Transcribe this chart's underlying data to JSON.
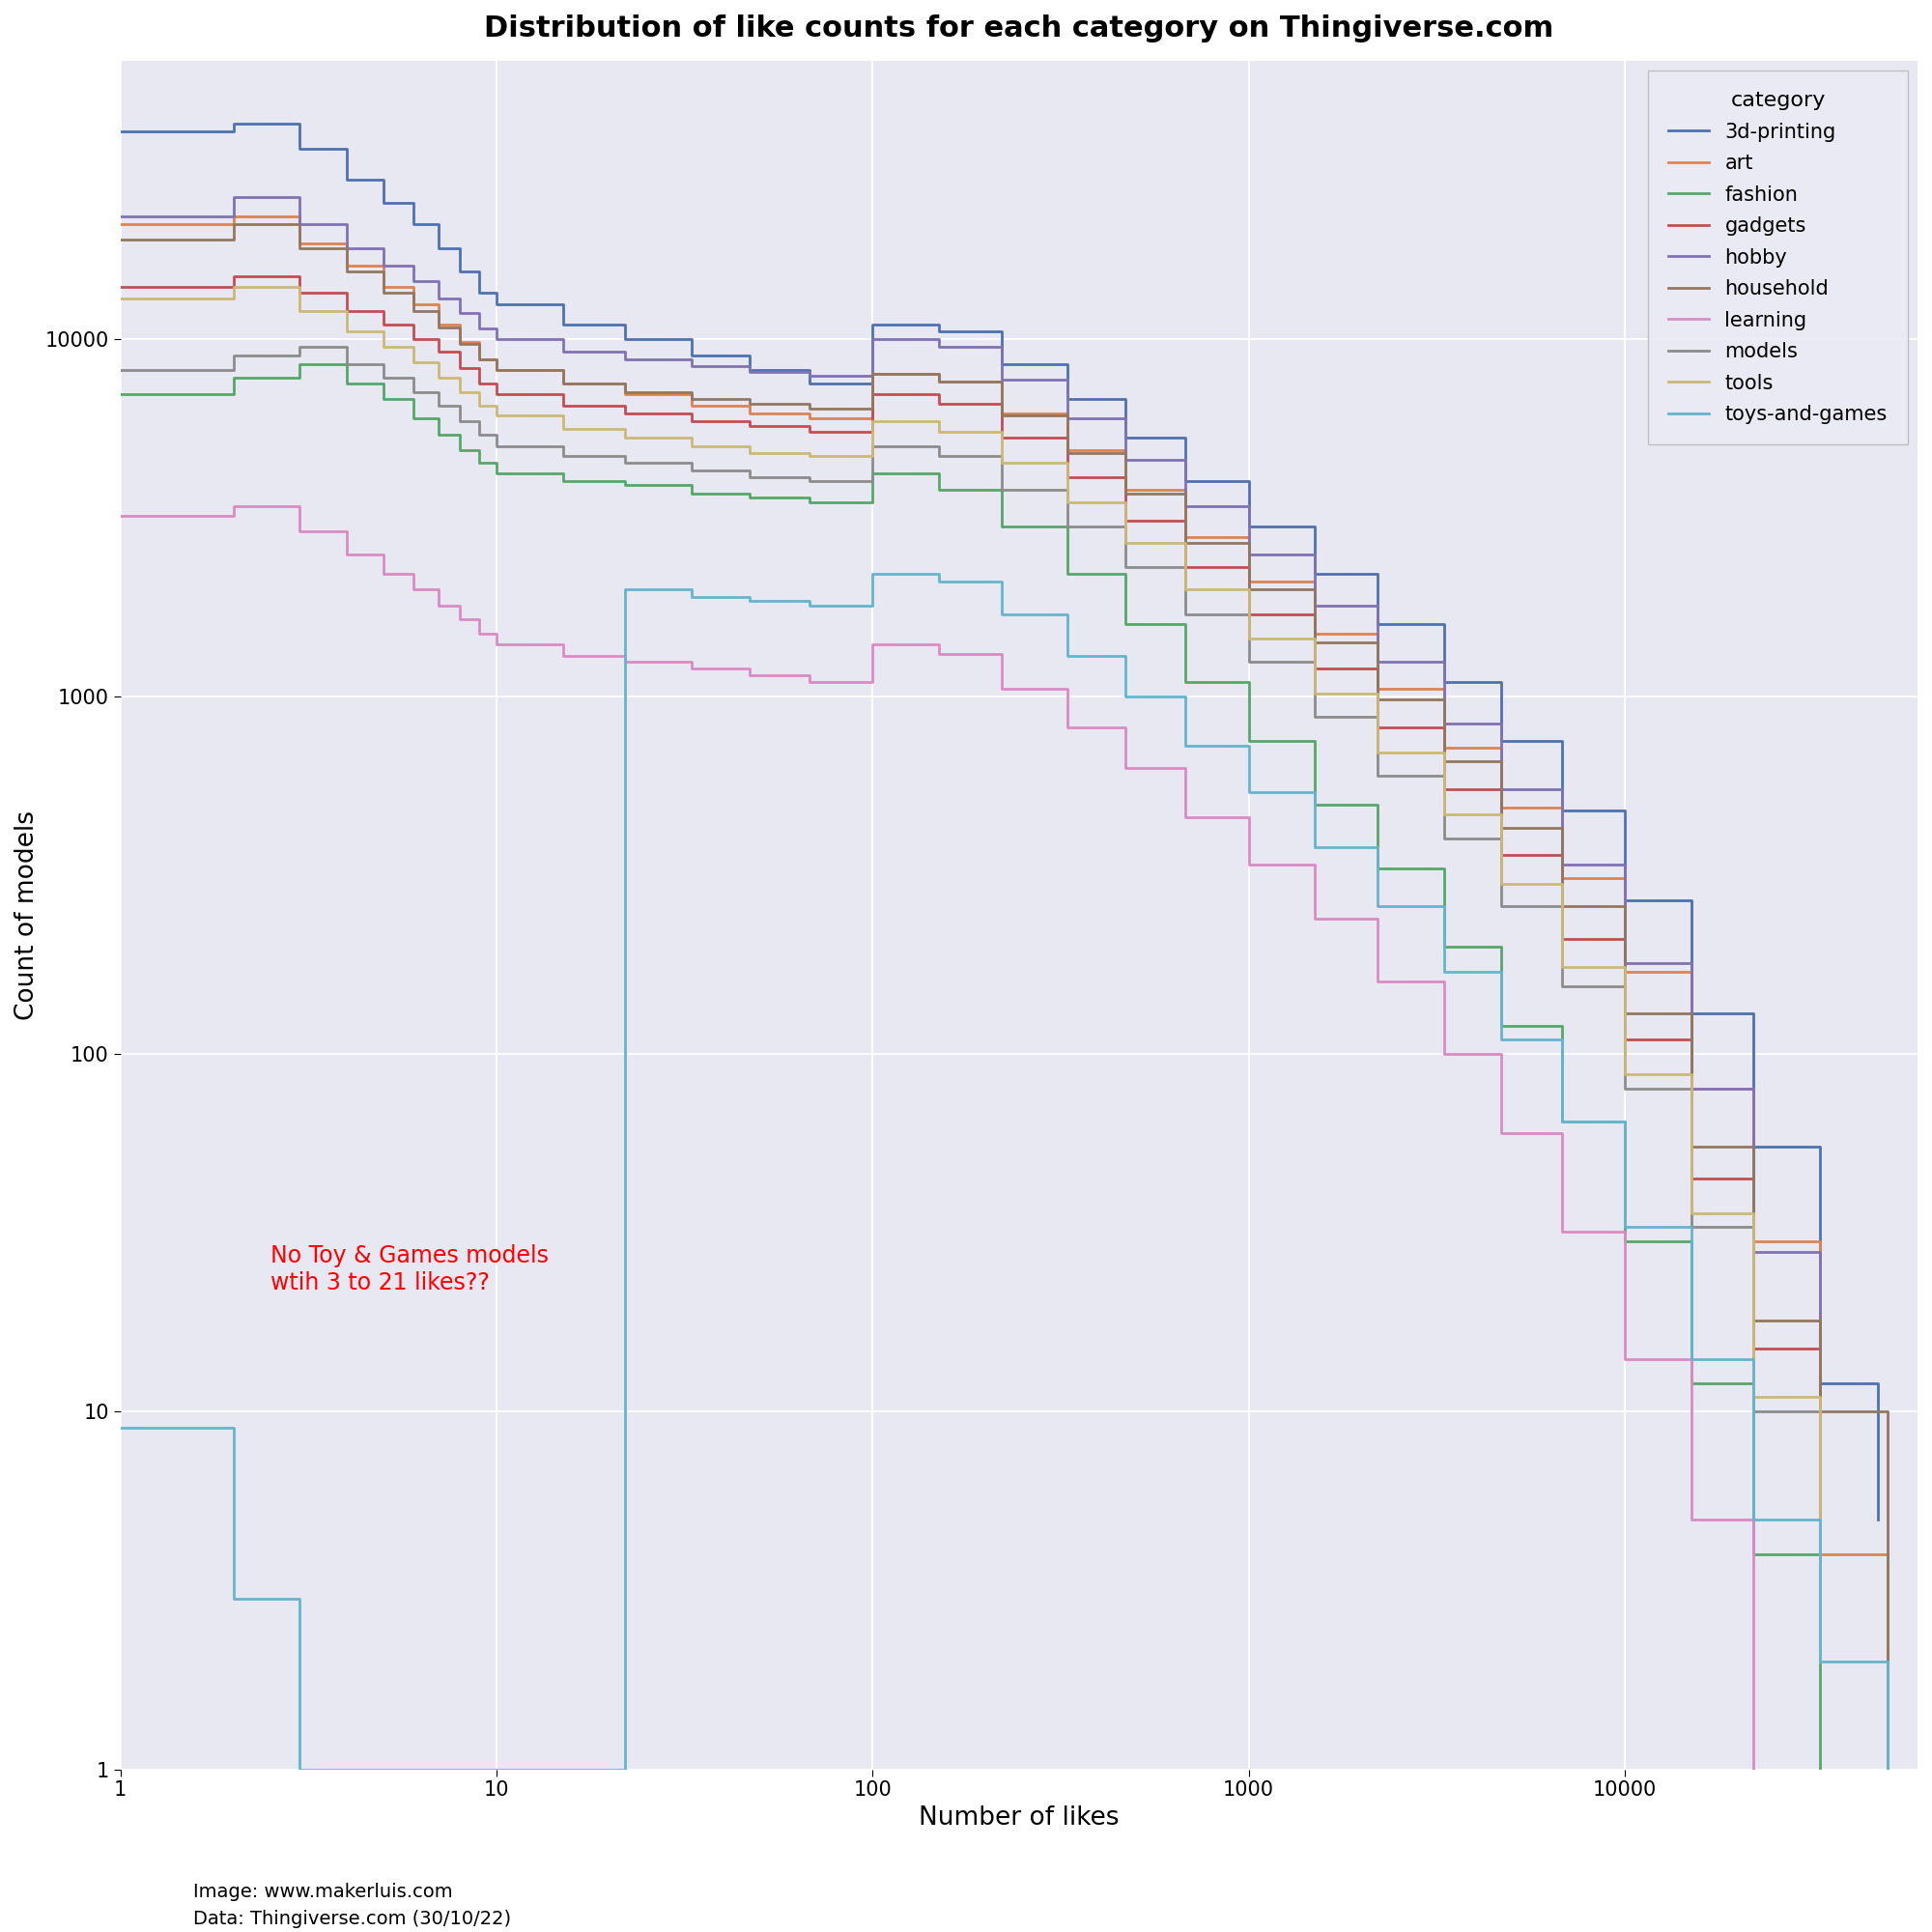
{
  "title": "Distribution of like counts for each category on Thingiverse.com",
  "xlabel": "Number of likes",
  "ylabel": "Count of models",
  "background_color": "#e8e8f2",
  "annotation_text": "No Toy & Games models\nwtih 3 to 21 likes??",
  "annotation_color": "red",
  "footer_line1": "Image: www.makerluis.com",
  "footer_line2": "Data: Thingiverse.com (30/10/22)",
  "legend_title": "category",
  "categories": [
    "3d-printing",
    "art",
    "fashion",
    "gadgets",
    "hobby",
    "household",
    "learning",
    "models",
    "tools",
    "toys-and-games"
  ],
  "colors": [
    "#4c72b0",
    "#dd8452",
    "#55a868",
    "#c44e52",
    "#8172b3",
    "#937860",
    "#da8bc3",
    "#8c8c8c",
    "#ccb974",
    "#64b5cd"
  ],
  "series": {
    "3d-printing": {
      "x": [
        1,
        2,
        3,
        4,
        5,
        6,
        7,
        8,
        9,
        10,
        15,
        22,
        33,
        47,
        68,
        100,
        150,
        220,
        330,
        470,
        680,
        1000,
        1500,
        2200,
        3300,
        4700,
        6800,
        10000,
        15000,
        22000,
        33000,
        47000
      ],
      "y": [
        38000,
        40000,
        34000,
        28000,
        24000,
        21000,
        18000,
        15500,
        13500,
        12500,
        11000,
        10000,
        9000,
        8200,
        7500,
        11000,
        10500,
        8500,
        6800,
        5300,
        4000,
        3000,
        2200,
        1600,
        1100,
        750,
        480,
        270,
        130,
        55,
        12,
        5
      ]
    },
    "art": {
      "x": [
        1,
        2,
        3,
        4,
        5,
        6,
        7,
        8,
        9,
        10,
        15,
        22,
        33,
        47,
        68,
        100,
        150,
        220,
        330,
        470,
        680,
        1000,
        1500,
        2200,
        3300,
        4700,
        6800,
        10000,
        15000,
        22000,
        33000,
        50000
      ],
      "y": [
        21000,
        22000,
        18500,
        16000,
        14000,
        12500,
        11000,
        9800,
        8800,
        8200,
        7500,
        7000,
        6500,
        6200,
        6000,
        8000,
        7600,
        6200,
        4900,
        3800,
        2800,
        2100,
        1500,
        1050,
        720,
        490,
        310,
        170,
        80,
        30,
        4,
        1
      ]
    },
    "fashion": {
      "x": [
        1,
        2,
        3,
        4,
        5,
        6,
        7,
        8,
        9,
        10,
        15,
        22,
        33,
        47,
        68,
        100,
        150,
        220,
        330,
        470,
        680,
        1000,
        1500,
        2200,
        3300,
        4700,
        6800,
        10000,
        15000,
        22000,
        33000
      ],
      "y": [
        7000,
        7800,
        8500,
        7500,
        6800,
        6000,
        5400,
        4900,
        4500,
        4200,
        4000,
        3900,
        3700,
        3600,
        3500,
        4200,
        3800,
        3000,
        2200,
        1600,
        1100,
        750,
        500,
        330,
        200,
        120,
        65,
        30,
        12,
        4,
        1
      ]
    },
    "gadgets": {
      "x": [
        1,
        2,
        3,
        4,
        5,
        6,
        7,
        8,
        9,
        10,
        15,
        22,
        33,
        47,
        68,
        100,
        150,
        220,
        330,
        470,
        680,
        1000,
        1500,
        2200,
        3300,
        4700,
        6800,
        10000,
        15000,
        22000,
        33000
      ],
      "y": [
        14000,
        15000,
        13500,
        12000,
        11000,
        10000,
        9200,
        8300,
        7500,
        7000,
        6500,
        6200,
        5900,
        5700,
        5500,
        7000,
        6600,
        5300,
        4100,
        3100,
        2300,
        1700,
        1200,
        820,
        550,
        360,
        210,
        110,
        45,
        15,
        3
      ]
    },
    "hobby": {
      "x": [
        1,
        2,
        3,
        4,
        5,
        6,
        7,
        8,
        9,
        10,
        15,
        22,
        33,
        47,
        68,
        100,
        150,
        220,
        330,
        470,
        680,
        1000,
        1500,
        2200,
        3300,
        4700,
        6800,
        10000,
        15000,
        22000,
        33000
      ],
      "y": [
        22000,
        25000,
        21000,
        18000,
        16000,
        14500,
        13000,
        11800,
        10700,
        10000,
        9200,
        8800,
        8400,
        8100,
        7900,
        10000,
        9500,
        7700,
        6000,
        4600,
        3400,
        2500,
        1800,
        1250,
        840,
        550,
        340,
        180,
        80,
        28,
        6
      ]
    },
    "household": {
      "x": [
        1,
        2,
        3,
        4,
        5,
        6,
        7,
        8,
        9,
        10,
        15,
        22,
        33,
        47,
        68,
        100,
        150,
        220,
        330,
        470,
        680,
        1000,
        1500,
        2200,
        3300,
        4700,
        6800,
        10000,
        15000,
        22000,
        33000,
        50000
      ],
      "y": [
        19000,
        21000,
        18000,
        15500,
        13500,
        12000,
        10800,
        9700,
        8800,
        8200,
        7500,
        7100,
        6800,
        6600,
        6400,
        8000,
        7600,
        6100,
        4800,
        3700,
        2700,
        2000,
        1420,
        980,
        660,
        430,
        260,
        130,
        55,
        18,
        10,
        1
      ]
    },
    "learning": {
      "x": [
        1,
        2,
        3,
        4,
        5,
        6,
        7,
        8,
        9,
        10,
        15,
        22,
        33,
        47,
        68,
        100,
        150,
        220,
        330,
        470,
        680,
        1000,
        1500,
        2200,
        3300,
        4700,
        6800,
        10000,
        15000,
        22000
      ],
      "y": [
        3200,
        3400,
        2900,
        2500,
        2200,
        2000,
        1800,
        1650,
        1500,
        1400,
        1300,
        1250,
        1200,
        1150,
        1100,
        1400,
        1320,
        1050,
        820,
        630,
        460,
        340,
        240,
        160,
        100,
        60,
        32,
        14,
        5,
        1
      ]
    },
    "models": {
      "x": [
        1,
        2,
        3,
        4,
        5,
        6,
        7,
        8,
        9,
        10,
        15,
        22,
        33,
        47,
        68,
        100,
        150,
        220,
        330,
        470,
        680,
        1000,
        1500,
        2200,
        3300,
        4700,
        6800,
        10000,
        15000,
        22000,
        33000
      ],
      "y": [
        8200,
        9000,
        9500,
        8500,
        7800,
        7100,
        6500,
        5900,
        5400,
        5000,
        4700,
        4500,
        4300,
        4100,
        4000,
        5000,
        4700,
        3800,
        3000,
        2300,
        1700,
        1250,
        880,
        600,
        400,
        260,
        155,
        80,
        33,
        10,
        2
      ]
    },
    "tools": {
      "x": [
        1,
        2,
        3,
        4,
        5,
        6,
        7,
        8,
        9,
        10,
        15,
        22,
        33,
        47,
        68,
        100,
        150,
        220,
        330,
        470,
        680,
        1000,
        1500,
        2200,
        3300,
        4700,
        6800,
        10000,
        15000,
        22000,
        33000
      ],
      "y": [
        13000,
        14000,
        12000,
        10500,
        9500,
        8600,
        7800,
        7100,
        6500,
        6100,
        5600,
        5300,
        5000,
        4800,
        4700,
        5900,
        5500,
        4500,
        3500,
        2700,
        2000,
        1450,
        1020,
        700,
        470,
        300,
        175,
        88,
        36,
        11,
        2
      ]
    },
    "toys-and-games": {
      "x": [
        1,
        2,
        3,
        22,
        33,
        47,
        68,
        100,
        150,
        220,
        330,
        470,
        680,
        1000,
        1500,
        2200,
        3300,
        4700,
        6800,
        10000,
        15000,
        22000,
        33000,
        50000
      ],
      "y": [
        9,
        3,
        1,
        2000,
        1900,
        1850,
        1800,
        2200,
        2100,
        1700,
        1300,
        1000,
        730,
        540,
        380,
        260,
        170,
        110,
        65,
        33,
        14,
        5,
        2,
        1
      ]
    }
  }
}
